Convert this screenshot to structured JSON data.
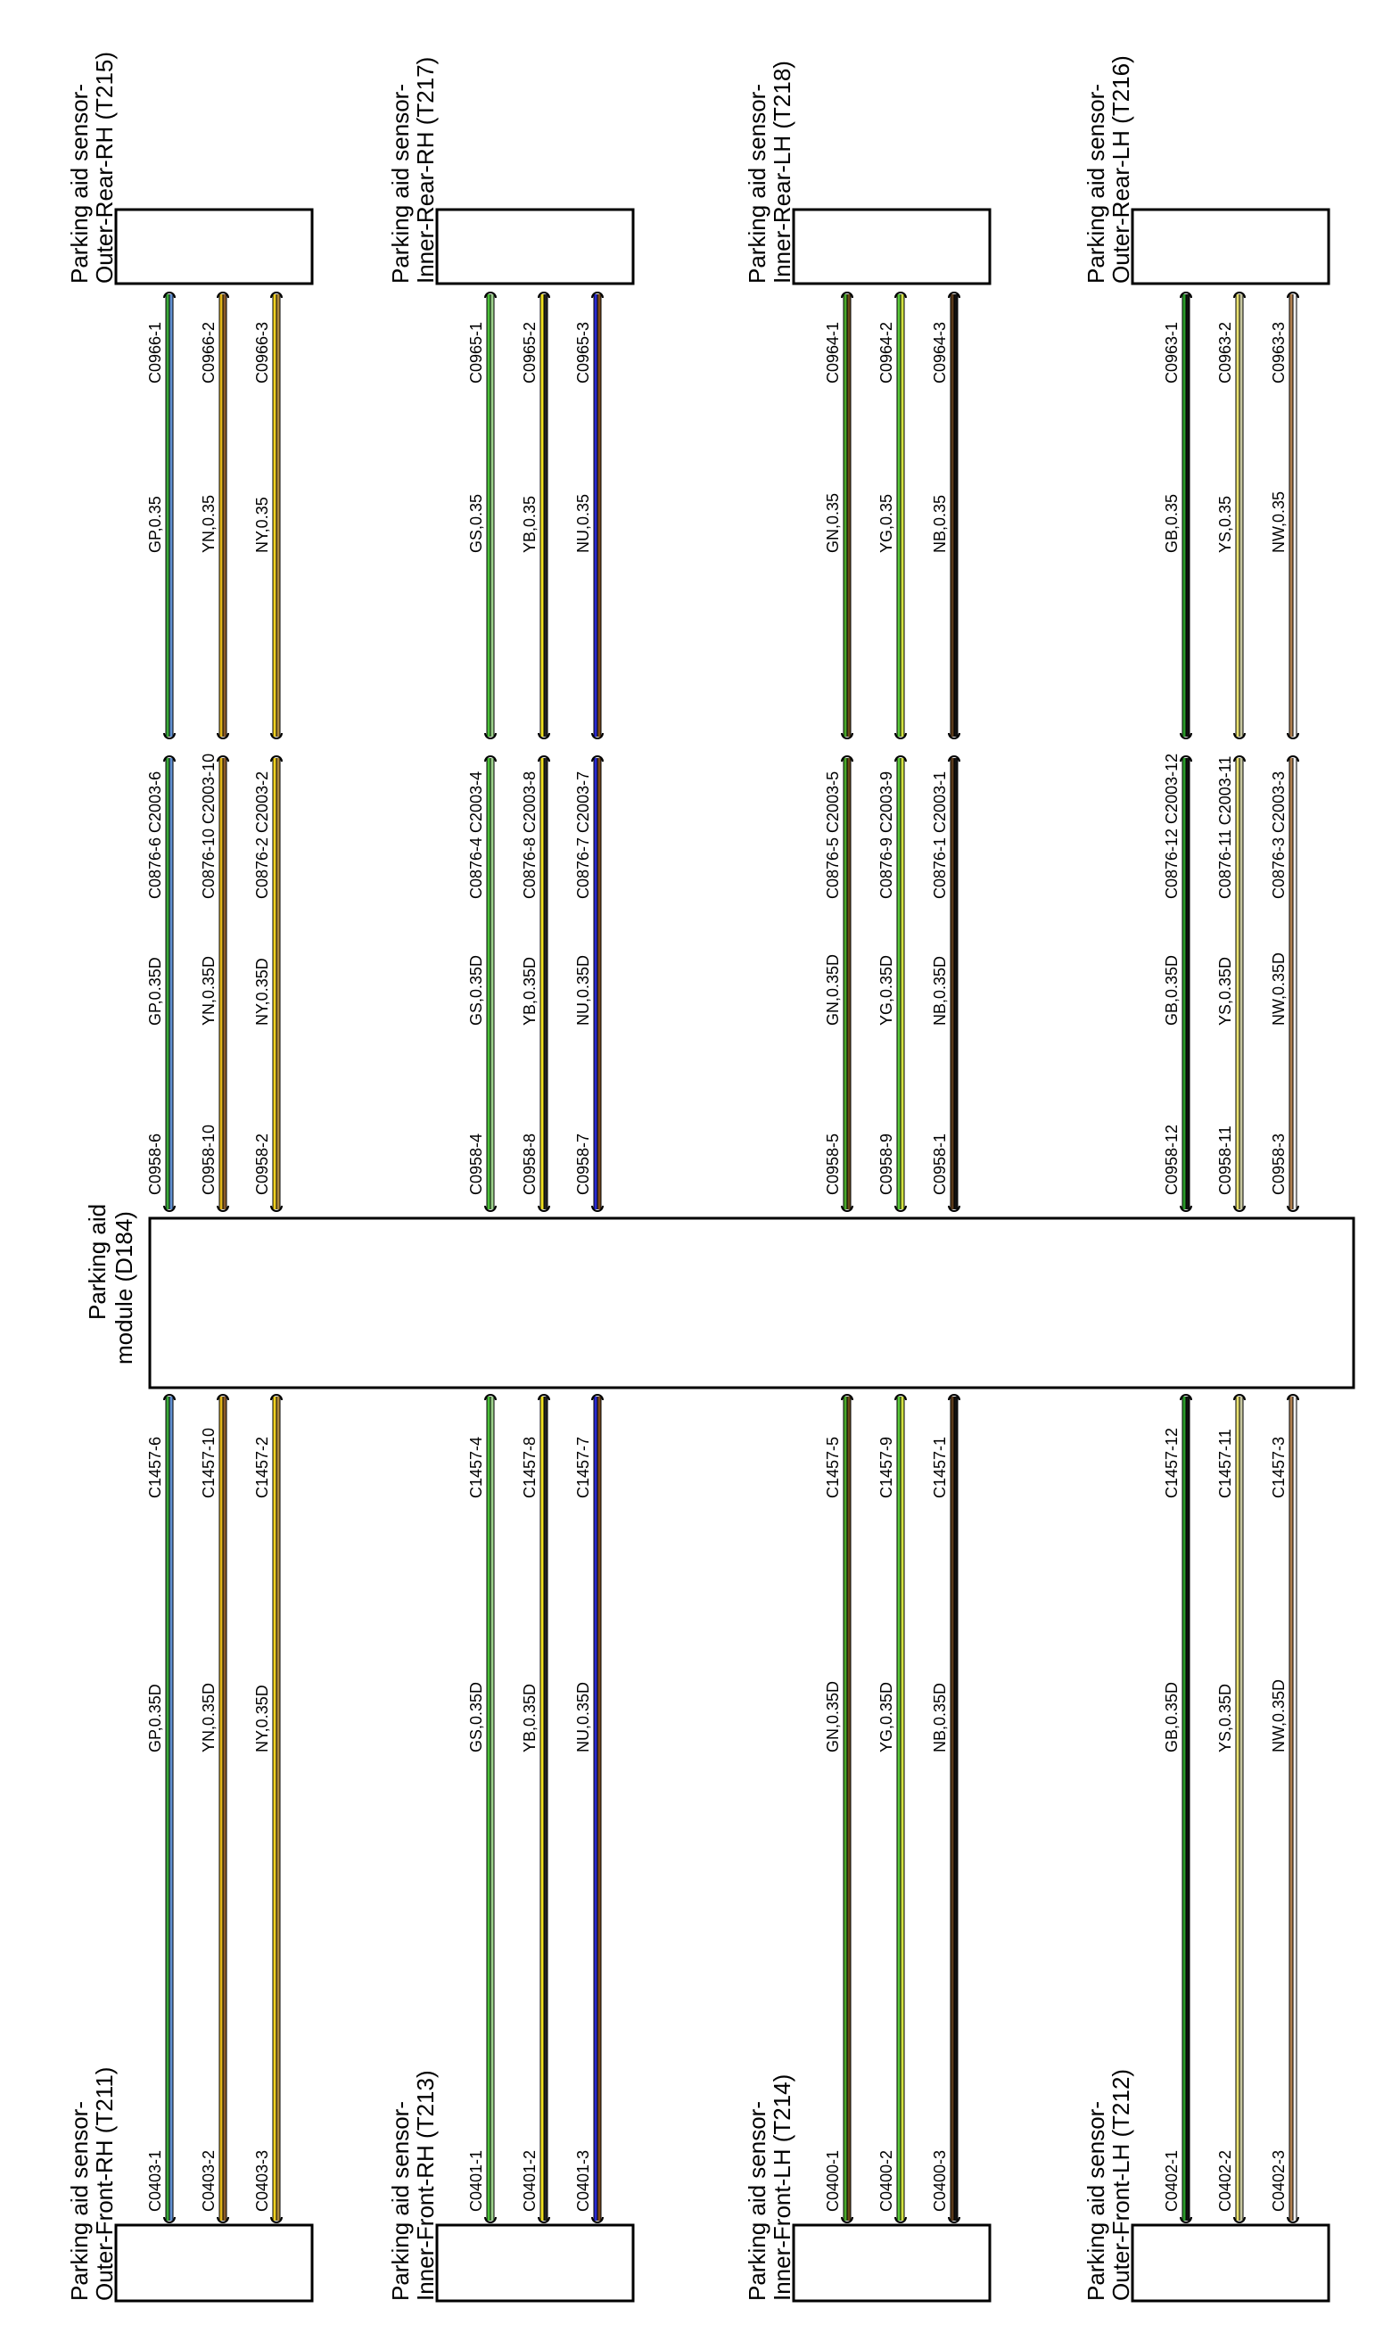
{
  "module": {
    "title_line1": "Parking aid",
    "title_line2": "module (D184)"
  },
  "groups": [
    {
      "rear_sensor": {
        "line1": "Parking aid sensor-",
        "line2": "Outer-Rear-RH (T215)"
      },
      "front_sensor": {
        "line1": "Parking aid sensor-",
        "line2": "Outer-Front-RH (T211)"
      },
      "wires": [
        {
          "rear_pin": "C0966-1",
          "rear_wire": "GP,0.35",
          "junction": "C0876-6 C2003-6",
          "module_wire": "GP,0.35D",
          "module_pin_top": "C0958-6",
          "module_pin_bottom": "C1457-6",
          "front_wire": "GP,0.35D",
          "front_pin": "C0403-1",
          "color1": "#3aa83a",
          "color2": "#5f8fcf"
        },
        {
          "rear_pin": "C0966-2",
          "rear_wire": "YN,0.35",
          "junction": "C0876-10 C2003-10",
          "module_wire": "YN,0.35D",
          "module_pin_top": "C0958-10",
          "module_pin_bottom": "C1457-10",
          "front_wire": "YN,0.35D",
          "front_pin": "C0403-2",
          "color1": "#e0b41a",
          "color2": "#8a5a2a"
        },
        {
          "rear_pin": "C0966-3",
          "rear_wire": "NY,0.35",
          "junction": "C0876-2 C2003-2",
          "module_wire": "NY,0.35D",
          "module_pin_top": "C0958-2",
          "module_pin_bottom": "C1457-2",
          "front_wire": "NY,0.35D",
          "front_pin": "C0403-3",
          "color1": "#f0d020",
          "color2": "#b08a3a"
        }
      ]
    },
    {
      "rear_sensor": {
        "line1": "Parking aid sensor-",
        "line2": "Inner-Rear-RH (T217)"
      },
      "front_sensor": {
        "line1": "Parking aid sensor-",
        "line2": "Inner-Front-RH (T213)"
      },
      "wires": [
        {
          "rear_pin": "C0965-1",
          "rear_wire": "GS,0.35",
          "junction": "C0876-4 C2003-4",
          "module_wire": "GS,0.35D",
          "module_pin_top": "C0958-4",
          "module_pin_bottom": "C1457-4",
          "front_wire": "GS,0.35D",
          "front_pin": "C0401-1",
          "color1": "#4cbf3a",
          "color2": "#9bd08a"
        },
        {
          "rear_pin": "C0965-2",
          "rear_wire": "YB,0.35",
          "junction": "C0876-8 C2003-8",
          "module_wire": "YB,0.35D",
          "module_pin_top": "C0958-8",
          "module_pin_bottom": "C1457-8",
          "front_wire": "YB,0.35D",
          "front_pin": "C0401-2",
          "color1": "#f0e020",
          "color2": "#222222"
        },
        {
          "rear_pin": "C0965-3",
          "rear_wire": "NU,0.35",
          "junction": "C0876-7 C2003-7",
          "module_wire": "NU,0.35D",
          "module_pin_top": "C0958-7",
          "module_pin_bottom": "C1457-7",
          "front_wire": "NU,0.35D",
          "front_pin": "C0401-3",
          "color1": "#2a2ad0",
          "color2": "#7a4a1a"
        }
      ]
    },
    {
      "rear_sensor": {
        "line1": "Parking aid sensor-",
        "line2": "Inner-Rear-LH (T218)"
      },
      "front_sensor": {
        "line1": "Parking aid sensor-",
        "line2": "Inner-Front-LH (T214)"
      },
      "wires": [
        {
          "rear_pin": "C0964-1",
          "rear_wire": "GN,0.35",
          "junction": "C0876-5 C2003-5",
          "module_wire": "GN,0.35D",
          "module_pin_top": "C0958-5",
          "module_pin_bottom": "C1457-5",
          "front_wire": "GN,0.35D",
          "front_pin": "C0400-1",
          "color1": "#4aa82a",
          "color2": "#6a4a1a"
        },
        {
          "rear_pin": "C0964-2",
          "rear_wire": "YG,0.35",
          "junction": "C0876-9 C2003-9",
          "module_wire": "YG,0.35D",
          "module_pin_top": "C0958-9",
          "module_pin_bottom": "C1457-9",
          "front_wire": "YG,0.35D",
          "front_pin": "C0400-2",
          "color1": "#5ac83a",
          "color2": "#d0e040"
        },
        {
          "rear_pin": "C0964-3",
          "rear_wire": "NB,0.35",
          "junction": "C0876-1 C2003-1",
          "module_wire": "NB,0.35D",
          "module_pin_top": "C0958-1",
          "module_pin_bottom": "C1457-1",
          "front_wire": "NB,0.35D",
          "front_pin": "C0400-3",
          "color1": "#5a3a1a",
          "color2": "#111111"
        }
      ]
    },
    {
      "rear_sensor": {
        "line1": "Parking aid sensor-",
        "line2": "Outer-Rear-LH (T216)"
      },
      "front_sensor": {
        "line1": "Parking aid sensor-",
        "line2": "Outer-Front-LH (T212)"
      },
      "wires": [
        {
          "rear_pin": "C0963-1",
          "rear_wire": "GB,0.35",
          "junction": "C0876-12 C2003-12",
          "module_wire": "GB,0.35D",
          "module_pin_top": "C0958-12",
          "module_pin_bottom": "C1457-12",
          "front_wire": "GB,0.35D",
          "front_pin": "C0402-1",
          "color1": "#2a9a2a",
          "color2": "#111111"
        },
        {
          "rear_pin": "C0963-2",
          "rear_wire": "YS,0.35",
          "junction": "C0876-11 C2003-11",
          "module_wire": "YS,0.35D",
          "module_pin_top": "C0958-11",
          "module_pin_bottom": "C1457-11",
          "front_wire": "YS,0.35D",
          "front_pin": "C0402-2",
          "color1": "#e8e070",
          "color2": "#c8c8a0"
        },
        {
          "rear_pin": "C0963-3",
          "rear_wire": "NW,0.35",
          "junction": "C0876-3 C2003-3",
          "module_wire": "NW,0.35D",
          "module_pin_top": "C0958-3",
          "module_pin_bottom": "C1457-3",
          "front_wire": "NW,0.35D",
          "front_pin": "C0402-3",
          "color1": "#b08050",
          "color2": "#f2f2f2"
        }
      ]
    }
  ]
}
